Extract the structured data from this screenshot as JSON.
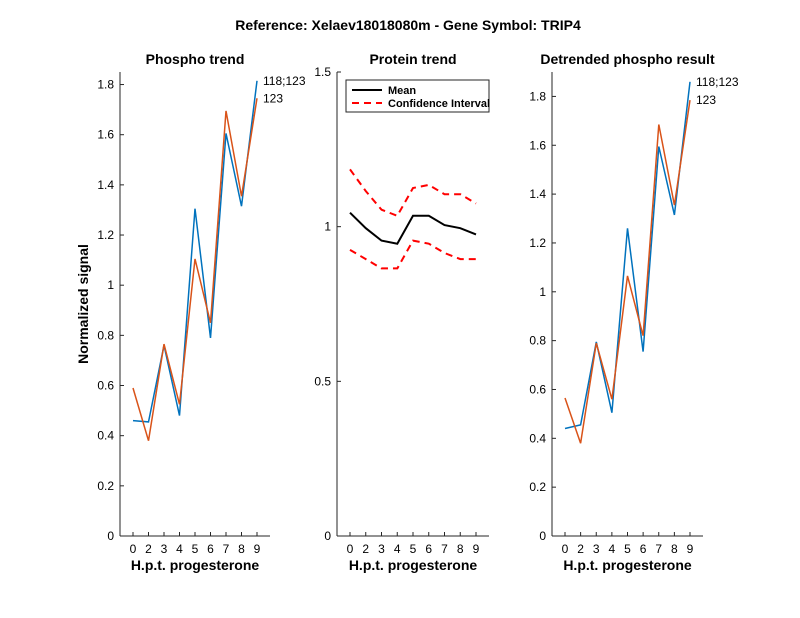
{
  "figure_title": "Reference:  Xelaev18018080m - Gene Symbol:  TRIP4",
  "colors": {
    "blue": "#0072BD",
    "orange": "#D95319",
    "black": "#000000",
    "red": "#FF0000"
  },
  "chart_data": [
    {
      "id": "phospho",
      "type": "line",
      "title": "Phospho trend",
      "xlabel": "H.p.t. progesterone",
      "ylabel": "Normalized signal",
      "categories": [
        "0",
        "2",
        "3",
        "4",
        "5",
        "6",
        "7",
        "8",
        "9"
      ],
      "ylim": [
        0,
        1.85
      ],
      "yticks": [
        0,
        0.2,
        0.4,
        0.6,
        0.8,
        1,
        1.2,
        1.4,
        1.6,
        1.8
      ],
      "ytick_labels": [
        "0",
        "0.2",
        "0.4",
        "0.6",
        "0.8",
        "1",
        "1.2",
        "1.4",
        "1.6",
        "1.8"
      ],
      "series": [
        {
          "name": "118;123",
          "color": "blue",
          "values": [
            0.46,
            0.455,
            0.76,
            0.48,
            1.305,
            0.79,
            1.605,
            1.315,
            1.815
          ]
        },
        {
          "name": "123",
          "color": "orange",
          "values": [
            0.59,
            0.38,
            0.765,
            0.525,
            1.105,
            0.85,
            1.695,
            1.355,
            1.745
          ]
        }
      ],
      "annotations": [
        "118;123",
        "123"
      ]
    },
    {
      "id": "protein",
      "type": "line",
      "title": "Protein trend",
      "xlabel": "H.p.t. progesterone",
      "ylabel": "",
      "categories": [
        "0",
        "2",
        "3",
        "4",
        "5",
        "6",
        "7",
        "8",
        "9"
      ],
      "ylim": [
        0,
        1.5
      ],
      "yticks": [
        0,
        0.5,
        1,
        1.5
      ],
      "ytick_labels": [
        "0",
        "0.5",
        "1",
        "1.5"
      ],
      "series": [
        {
          "name": "Mean",
          "color": "black",
          "dash": "solid",
          "values": [
            1.045,
            0.995,
            0.955,
            0.945,
            1.035,
            1.035,
            1.005,
            0.995,
            0.975
          ]
        },
        {
          "name": "CI upper",
          "color": "red",
          "dash": "dashed",
          "values": [
            1.185,
            1.115,
            1.055,
            1.035,
            1.125,
            1.135,
            1.105,
            1.105,
            1.075
          ]
        },
        {
          "name": "CI lower",
          "color": "red",
          "dash": "dashed",
          "values": [
            0.925,
            0.895,
            0.865,
            0.865,
            0.955,
            0.945,
            0.915,
            0.895,
            0.895
          ]
        }
      ],
      "legend": {
        "placement": "top-left",
        "entries": [
          {
            "label": "Mean",
            "color": "black",
            "dash": "solid"
          },
          {
            "label": "Confidence Interval",
            "color": "red",
            "dash": "dashed"
          }
        ]
      }
    },
    {
      "id": "detrended",
      "type": "line",
      "title": "Detrended phospho result",
      "xlabel": "H.p.t. progesterone",
      "ylabel": "",
      "categories": [
        "0",
        "2",
        "3",
        "4",
        "5",
        "6",
        "7",
        "8",
        "9"
      ],
      "ylim": [
        0,
        1.9
      ],
      "yticks": [
        0,
        0.2,
        0.4,
        0.6,
        0.8,
        1,
        1.2,
        1.4,
        1.6,
        1.8
      ],
      "ytick_labels": [
        "0",
        "0.2",
        "0.4",
        "0.6",
        "0.8",
        "1",
        "1.2",
        "1.4",
        "1.6",
        "1.8"
      ],
      "series": [
        {
          "name": "118;123",
          "color": "blue",
          "values": [
            0.44,
            0.455,
            0.795,
            0.505,
            1.26,
            0.755,
            1.595,
            1.315,
            1.86
          ]
        },
        {
          "name": "123",
          "color": "orange",
          "values": [
            0.565,
            0.38,
            0.79,
            0.56,
            1.065,
            0.82,
            1.685,
            1.355,
            1.785
          ]
        }
      ],
      "annotations": [
        "118;123",
        "123"
      ]
    }
  ]
}
